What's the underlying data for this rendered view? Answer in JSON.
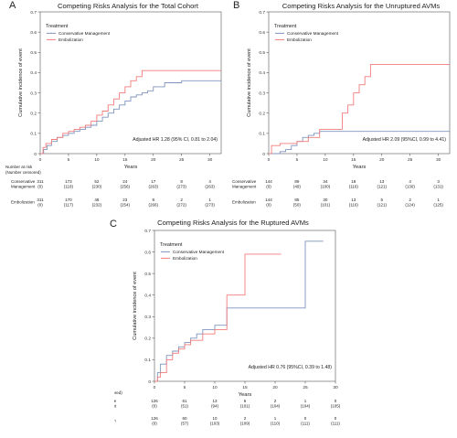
{
  "chart_data": [
    {
      "letter": "A",
      "type": "line",
      "step": true,
      "title": "Competing Risks Analysis for the Total Cohort",
      "xlabel": "Years",
      "ylabel": "Cumulative incidence of event",
      "xlim": [
        0,
        32
      ],
      "ylim": [
        0,
        0.7
      ],
      "xticks": [
        0,
        5,
        10,
        15,
        20,
        25,
        30
      ],
      "yticks": [
        0,
        0.1,
        0.2,
        0.3,
        0.4,
        0.5,
        0.6,
        0.7
      ],
      "legend_title": "Treatment",
      "legend_position": "top-left",
      "annotation": "Adjusted HR 1.28 (95% CI, 0.81 to 2.04)",
      "series": [
        {
          "name": "Conservative Management",
          "color": "#7f95bf",
          "x": [
            0,
            0.6,
            1.2,
            2,
            3,
            4,
            5,
            6,
            7,
            8,
            9,
            10,
            11,
            12,
            13,
            14,
            15,
            16,
            17,
            18,
            19,
            20,
            22,
            25,
            32
          ],
          "y": [
            0,
            0.02,
            0.04,
            0.06,
            0.08,
            0.09,
            0.1,
            0.11,
            0.12,
            0.13,
            0.14,
            0.16,
            0.18,
            0.2,
            0.22,
            0.24,
            0.26,
            0.28,
            0.29,
            0.3,
            0.31,
            0.33,
            0.35,
            0.36,
            0.36
          ]
        },
        {
          "name": "Embolization",
          "color": "#f27c7c",
          "x": [
            0,
            0.5,
            1,
            2,
            3,
            4,
            5,
            6,
            7,
            8,
            9,
            10,
            11,
            12,
            13,
            14,
            15,
            16,
            17,
            18,
            32
          ],
          "y": [
            0,
            0.03,
            0.05,
            0.07,
            0.08,
            0.1,
            0.11,
            0.12,
            0.13,
            0.14,
            0.16,
            0.19,
            0.21,
            0.24,
            0.27,
            0.3,
            0.33,
            0.36,
            0.38,
            0.41,
            0.41
          ]
        }
      ],
      "risk_table": {
        "x": [
          0,
          5,
          10,
          15,
          20,
          25,
          30
        ],
        "rows": [
          {
            "label": "Conservative Management",
            "n": [
              "311",
              "173",
              "52",
              "24",
              "17",
              "8",
              "4"
            ],
            "c": [
              "(0)",
              "(118)",
              "(230)",
              "(256)",
              "(263)",
              "(273)",
              "(263)"
            ]
          },
          {
            "label": "Embolization",
            "n": [
              "311",
              "170",
              "48",
              "23",
              "8",
              "2",
              "1"
            ],
            "c": [
              "(0)",
              "(117)",
              "(232)",
              "(254)",
              "(266)",
              "(272)",
              "(273)"
            ]
          }
        ]
      }
    },
    {
      "letter": "B",
      "type": "line",
      "step": true,
      "title": "Competing Risks Analysis for the Unruptured AVMs",
      "xlabel": "Years",
      "ylabel": "Cumulative incidence of event",
      "xlim": [
        0,
        32
      ],
      "ylim": [
        0,
        0.7
      ],
      "xticks": [
        0,
        5,
        10,
        15,
        20,
        25,
        30
      ],
      "yticks": [
        0,
        0.1,
        0.2,
        0.3,
        0.4,
        0.5,
        0.6,
        0.7
      ],
      "legend_title": "Treatment",
      "legend_position": "top-left",
      "annotation": "Adjusted HR 2.09 (95%CI, 0.99 to 4.41)",
      "series": [
        {
          "name": "Conservative Management",
          "color": "#7f95bf",
          "x": [
            0,
            2,
            3,
            4,
            5,
            6,
            7,
            8,
            9,
            32
          ],
          "y": [
            0,
            0.01,
            0.02,
            0.04,
            0.06,
            0.08,
            0.09,
            0.1,
            0.11,
            0.11
          ]
        },
        {
          "name": "Embolization",
          "color": "#f27c7c",
          "x": [
            0,
            0.5,
            2,
            5,
            7,
            9,
            13,
            14,
            15,
            16,
            17,
            18,
            32
          ],
          "y": [
            0,
            0.04,
            0.05,
            0.06,
            0.08,
            0.12,
            0.2,
            0.24,
            0.3,
            0.34,
            0.38,
            0.44,
            0.44
          ]
        }
      ],
      "risk_table": {
        "x": [
          0,
          5,
          10,
          15,
          20,
          25,
          30
        ],
        "rows": [
          {
            "label": "Conservative Management",
            "n": [
              "144",
              "89",
              "34",
              "18",
              "13",
              "4",
              "3"
            ],
            "c": [
              "(0)",
              "(49)",
              "(100)",
              "(116)",
              "(121)",
              "(130)",
              "(131)"
            ]
          },
          {
            "label": "Embolization",
            "n": [
              "144",
              "85",
              "30",
              "13",
              "5",
              "2",
              "1"
            ],
            "c": [
              "(0)",
              "(50)",
              "(101)",
              "(116)",
              "(121)",
              "(124)",
              "(125)"
            ]
          }
        ]
      }
    },
    {
      "letter": "C",
      "type": "line",
      "step": true,
      "title": "Competing Risks Analysis for the Ruptured AVMs",
      "xlabel": "Years",
      "ylabel": "Cumulative incidence of event",
      "xlim": [
        0,
        30
      ],
      "ylim": [
        0,
        0.7
      ],
      "xticks": [
        0,
        5,
        10,
        15,
        20,
        25,
        30
      ],
      "yticks": [
        0,
        0.1,
        0.2,
        0.3,
        0.4,
        0.5,
        0.6,
        0.7
      ],
      "legend_title": "Treatment",
      "legend_position": "top-left",
      "annotation": "Adjusted HR 0.76 (95%CI, 0.39 to 1.48)",
      "series": [
        {
          "name": "Conservative Management",
          "color": "#7f95bf",
          "x": [
            0,
            0.5,
            1,
            2,
            3,
            4,
            5,
            6,
            7,
            8,
            10,
            12,
            23,
            25,
            28
          ],
          "y": [
            0,
            0.04,
            0.08,
            0.12,
            0.14,
            0.16,
            0.18,
            0.2,
            0.22,
            0.24,
            0.26,
            0.34,
            0.34,
            0.65,
            0.65
          ]
        },
        {
          "name": "Embolization",
          "color": "#f27c7c",
          "x": [
            0,
            0.5,
            1,
            2,
            3,
            4,
            5,
            6,
            8,
            10,
            12,
            15,
            21
          ],
          "y": [
            0,
            0.02,
            0.04,
            0.1,
            0.13,
            0.15,
            0.17,
            0.19,
            0.22,
            0.24,
            0.4,
            0.59,
            0.59
          ]
        }
      ],
      "risk_table": {
        "x": [
          0,
          5,
          10,
          15,
          20,
          25,
          30
        ],
        "rows": [
          {
            "label": "Conservative Management",
            "n": [
              "126",
              "61",
              "13",
              "6",
              "2",
              "1",
              "0"
            ],
            "c": [
              "(0)",
              "(51)",
              "(94)",
              "(101)",
              "(104)",
              "(104)",
              "(105)"
            ]
          },
          {
            "label": "Embolization",
            "n": [
              "126",
              "60",
              "10",
              "2",
              "1",
              "0",
              "0"
            ],
            "c": [
              "(0)",
              "(57)",
              "(103)",
              "(109)",
              "(110)",
              "(111)",
              "(111)"
            ]
          }
        ]
      }
    }
  ],
  "risk_header": [
    "Number at risk",
    "(Number censored)"
  ],
  "risk_row_labels": {
    "cm": [
      "Conservative",
      "Management"
    ],
    "emb": [
      "Embolization"
    ]
  }
}
